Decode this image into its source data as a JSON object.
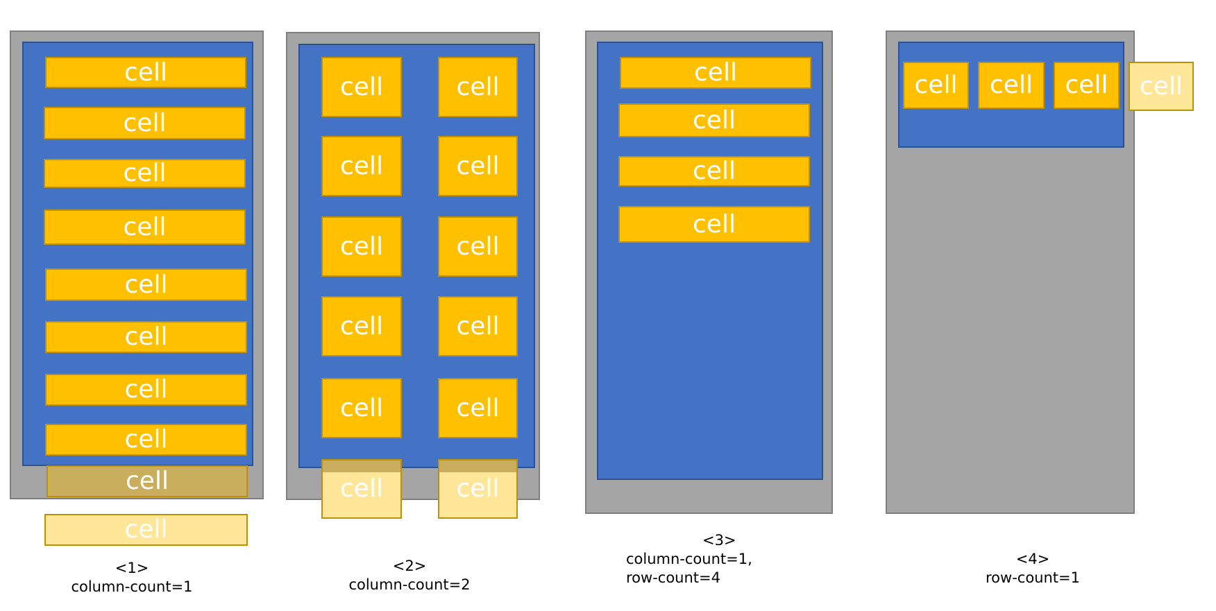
{
  "cell_label": "cell",
  "colors": {
    "outer_container": "#a5a5a5",
    "inner_container": "#4472c4",
    "cell": "#ffc000",
    "cell_overflow": "#ffe699",
    "cell_text": "#ffffff"
  },
  "diagrams": [
    {
      "id": "1",
      "caption": [
        "<1>",
        "column-count=1"
      ]
    },
    {
      "id": "2",
      "caption": [
        "<2>",
        "column-count=2"
      ]
    },
    {
      "id": "3",
      "caption": [
        "<3>",
        "column-count=1,",
        "row-count=4"
      ]
    },
    {
      "id": "4",
      "caption": [
        "<4>",
        "row-count=1"
      ]
    }
  ]
}
